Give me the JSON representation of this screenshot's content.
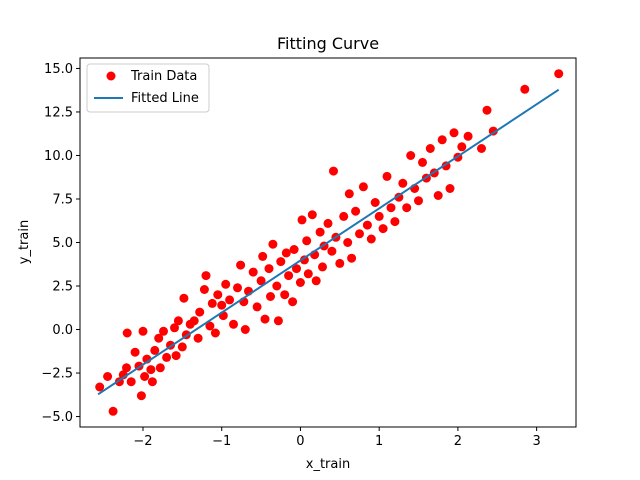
{
  "chart_data": {
    "type": "scatter",
    "title": "Fitting Curve",
    "xlabel": "x_train",
    "ylabel": "y_train",
    "xlim": [
      -2.8,
      3.5
    ],
    "ylim": [
      -5.6,
      15.6
    ],
    "xticks": [
      -2,
      -1,
      0,
      1,
      2,
      3
    ],
    "xtick_labels": [
      "−2",
      "−1",
      "0",
      "1",
      "2",
      "3"
    ],
    "yticks": [
      -5.0,
      -2.5,
      0.0,
      2.5,
      5.0,
      7.5,
      10.0,
      12.5,
      15.0
    ],
    "ytick_labels": [
      "−5.0",
      "−2.5",
      "0.0",
      "2.5",
      "5.0",
      "7.5",
      "10.0",
      "12.5",
      "15.0"
    ],
    "grid": false,
    "legend_position": "top-left",
    "series": [
      {
        "name": "Train Data",
        "kind": "scatter",
        "color": "#ff0000",
        "x": [
          -2.55,
          -2.45,
          -2.38,
          -2.3,
          -2.25,
          -2.21,
          -2.2,
          -2.15,
          -2.1,
          -2.05,
          -2.02,
          -2.0,
          -1.98,
          -1.95,
          -1.9,
          -1.88,
          -1.85,
          -1.8,
          -1.78,
          -1.74,
          -1.7,
          -1.65,
          -1.6,
          -1.58,
          -1.55,
          -1.5,
          -1.48,
          -1.45,
          -1.4,
          -1.35,
          -1.3,
          -1.28,
          -1.22,
          -1.2,
          -1.15,
          -1.12,
          -1.08,
          -1.05,
          -1.0,
          -0.98,
          -0.95,
          -0.9,
          -0.85,
          -0.8,
          -0.76,
          -0.72,
          -0.7,
          -0.66,
          -0.6,
          -0.55,
          -0.5,
          -0.48,
          -0.45,
          -0.4,
          -0.38,
          -0.35,
          -0.3,
          -0.28,
          -0.25,
          -0.2,
          -0.18,
          -0.15,
          -0.1,
          -0.08,
          -0.05,
          0.0,
          0.02,
          0.05,
          0.08,
          0.1,
          0.15,
          0.18,
          0.2,
          0.25,
          0.28,
          0.3,
          0.35,
          0.4,
          0.42,
          0.45,
          0.5,
          0.55,
          0.6,
          0.62,
          0.65,
          0.7,
          0.75,
          0.8,
          0.85,
          0.9,
          0.95,
          1.0,
          1.05,
          1.1,
          1.15,
          1.2,
          1.25,
          1.3,
          1.35,
          1.4,
          1.45,
          1.5,
          1.55,
          1.6,
          1.65,
          1.7,
          1.75,
          1.8,
          1.85,
          1.9,
          1.95,
          2.0,
          2.05,
          2.13,
          2.3,
          2.37,
          2.45,
          2.85,
          3.28
        ],
        "y": [
          -3.3,
          -2.7,
          -4.7,
          -3.0,
          -2.6,
          -2.2,
          -0.2,
          -3.0,
          -1.3,
          -2.1,
          -3.8,
          -0.1,
          -2.7,
          -1.7,
          -2.3,
          -3.0,
          -1.2,
          -0.5,
          -2.2,
          -0.1,
          -1.6,
          -0.9,
          0.1,
          -1.5,
          0.5,
          -1.0,
          1.8,
          -0.3,
          0.3,
          0.5,
          -0.5,
          1.0,
          2.3,
          3.1,
          0.2,
          1.5,
          -0.2,
          2.0,
          1.4,
          0.8,
          2.6,
          1.7,
          0.3,
          2.4,
          3.7,
          1.6,
          0.0,
          2.2,
          3.3,
          1.3,
          2.8,
          4.2,
          0.6,
          3.5,
          1.9,
          4.9,
          2.5,
          0.5,
          3.9,
          2.0,
          4.4,
          3.1,
          1.6,
          4.6,
          3.5,
          2.7,
          6.3,
          4.0,
          5.1,
          3.2,
          6.6,
          4.3,
          2.8,
          5.6,
          3.6,
          4.8,
          6.1,
          4.5,
          9.1,
          5.3,
          3.8,
          6.5,
          5.0,
          7.8,
          4.1,
          6.8,
          5.5,
          8.2,
          6.0,
          5.2,
          7.3,
          6.5,
          5.8,
          8.8,
          7.0,
          6.2,
          7.6,
          8.4,
          7.0,
          10.0,
          8.1,
          7.4,
          9.6,
          8.7,
          10.4,
          9.0,
          7.7,
          10.9,
          9.4,
          8.1,
          11.3,
          9.9,
          10.5,
          11.1,
          10.4,
          12.6,
          11.4,
          13.8,
          14.7
        ]
      },
      {
        "name": "Fitted Line",
        "kind": "line",
        "color": "#1f77b4",
        "x": [
          -2.57,
          3.28
        ],
        "y": [
          -3.72,
          13.78
        ]
      }
    ]
  }
}
